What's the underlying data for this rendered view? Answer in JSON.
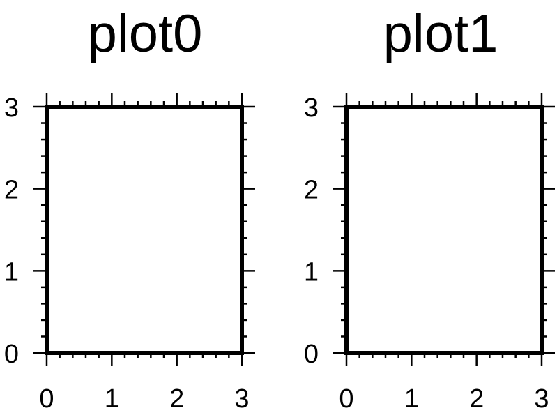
{
  "chart_data": [
    {
      "type": "scatter",
      "title": "plot0",
      "xlabel": "",
      "ylabel": "",
      "xlim": [
        0,
        3
      ],
      "ylim": [
        0,
        3
      ],
      "x_ticks": [
        "0",
        "1",
        "2",
        "3"
      ],
      "y_ticks": [
        "0",
        "1",
        "2",
        "3"
      ],
      "minor_ticks_per_major": 5,
      "grid": false,
      "series": []
    },
    {
      "type": "scatter",
      "title": "plot1",
      "xlabel": "",
      "ylabel": "",
      "xlim": [
        0,
        3
      ],
      "ylim": [
        0,
        3
      ],
      "x_ticks": [
        "0",
        "1",
        "2",
        "3"
      ],
      "y_ticks": [
        "0",
        "1",
        "2",
        "3"
      ],
      "minor_ticks_per_major": 5,
      "grid": false,
      "series": []
    }
  ],
  "colors": {
    "frame": "#000000",
    "background": "#ffffff"
  }
}
